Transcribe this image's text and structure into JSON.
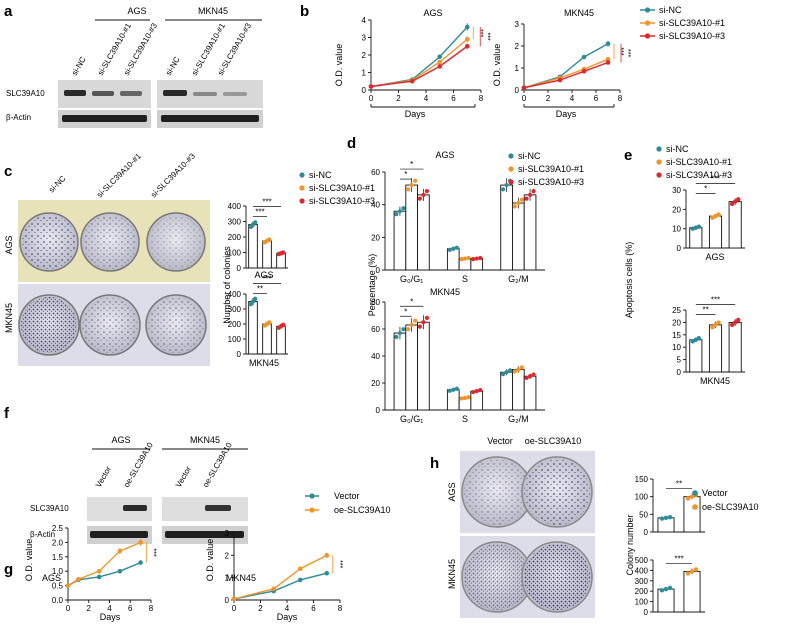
{
  "colors": {
    "c1": "#2b8c9a",
    "c2": "#f39425",
    "c3": "#e3262b",
    "vec": "#2b8c9a",
    "oe": "#f39425"
  },
  "panels": {
    "a": "a",
    "b": "b",
    "c": "c",
    "d": "d",
    "e": "e",
    "f": "f",
    "g": "g",
    "h": "h"
  },
  "text": {
    "AGS": "AGS",
    "MKN45": "MKN45",
    "siNC": "si-NC",
    "si1": "si-SLC39A10-#1",
    "si3": "si-SLC39A10-#3",
    "SLC39A10": "SLC39A10",
    "bactin": "β-Actin",
    "Vector": "Vector",
    "oe": "oe-SLC39A10",
    "Days": "Days",
    "OD": "O.D. value",
    "NumCol": "Number of colonies",
    "ColNum": "Colony number",
    "Perc": "Percentage (%)",
    "Apop": "Apoptosis cells (%)",
    "G0G1": "G₀/G₁",
    "S": "S",
    "G2M": "G₂/M",
    "s1": "*",
    "s2": "**",
    "s3": "***"
  },
  "chart_data": [
    {
      "type": "line",
      "panel": "b-AGS",
      "title": "AGS",
      "xlabel": "Days",
      "ylabel": "O.D. value",
      "xlim": [
        0,
        8
      ],
      "ylim": [
        0,
        4
      ],
      "xticks": [
        0,
        2,
        4,
        6,
        8
      ],
      "yticks": [
        0,
        1,
        2,
        3,
        4
      ],
      "x": [
        0,
        3,
        5,
        7
      ],
      "series": [
        {
          "name": "si-NC",
          "values": [
            0.2,
            0.6,
            1.9,
            3.6
          ]
        },
        {
          "name": "si-SLC39A10-#1",
          "values": [
            0.2,
            0.55,
            1.6,
            2.9
          ]
        },
        {
          "name": "si-SLC39A10-#3",
          "values": [
            0.2,
            0.5,
            1.35,
            2.5
          ]
        }
      ],
      "significance": [
        "***",
        "***"
      ]
    },
    {
      "type": "line",
      "panel": "b-MKN45",
      "title": "MKN45",
      "xlabel": "Days",
      "ylabel": "O.D. value",
      "xlim": [
        0,
        8
      ],
      "ylim": [
        0,
        3
      ],
      "xticks": [
        0,
        2,
        4,
        6,
        8
      ],
      "yticks": [
        0,
        1,
        2,
        3
      ],
      "x": [
        0,
        3,
        5,
        7
      ],
      "series": [
        {
          "name": "si-NC",
          "values": [
            0.1,
            0.6,
            1.5,
            2.1
          ]
        },
        {
          "name": "si-SLC39A10-#1",
          "values": [
            0.1,
            0.55,
            0.95,
            1.4
          ]
        },
        {
          "name": "si-SLC39A10-#3",
          "values": [
            0.1,
            0.45,
            0.85,
            1.25
          ]
        }
      ],
      "significance": [
        "***",
        "***"
      ]
    },
    {
      "type": "bar",
      "panel": "c-AGS",
      "xlabel": "AGS",
      "ylabel": "Number of colonies",
      "ylim": [
        0,
        400
      ],
      "yticks": [
        0,
        100,
        200,
        300,
        400
      ],
      "categories": [
        "si-NC",
        "si-SLC39A10-#1",
        "si-SLC39A10-#3"
      ],
      "values": [
        280,
        175,
        95
      ],
      "significance": [
        "***",
        "***"
      ]
    },
    {
      "type": "bar",
      "panel": "c-MKN45",
      "xlabel": "MKN45",
      "ylabel": "Number of colonies",
      "ylim": [
        0,
        400
      ],
      "yticks": [
        0,
        100,
        200,
        300,
        400
      ],
      "categories": [
        "si-NC",
        "si-SLC39A10-#1",
        "si-SLC39A10-#3"
      ],
      "values": [
        350,
        200,
        185
      ],
      "significance": [
        "**",
        "***"
      ]
    },
    {
      "type": "bar",
      "panel": "d-AGS",
      "title": "AGS",
      "ylabel": "Percentage (%)",
      "ylim": [
        0,
        60
      ],
      "yticks": [
        0,
        20,
        40,
        60
      ],
      "categories": [
        "G₀/G₁",
        "S",
        "G₂/M"
      ],
      "series": [
        {
          "name": "si-NC",
          "values": [
            36,
            13,
            52
          ]
        },
        {
          "name": "si-SLC39A10-#1",
          "values": [
            52,
            7,
            41
          ]
        },
        {
          "name": "si-SLC39A10-#3",
          "values": [
            46,
            7,
            46
          ]
        }
      ],
      "significance": [
        "*",
        "*"
      ]
    },
    {
      "type": "bar",
      "panel": "d-MKN45",
      "title": "MKN45",
      "ylabel": "Percentage (%)",
      "ylim": [
        0,
        80
      ],
      "yticks": [
        0,
        20,
        40,
        60,
        80
      ],
      "categories": [
        "G₀/G₁",
        "S",
        "G₂/M"
      ],
      "series": [
        {
          "name": "si-NC",
          "values": [
            57,
            15,
            28
          ]
        },
        {
          "name": "si-SLC39A10-#1",
          "values": [
            63,
            9,
            30
          ]
        },
        {
          "name": "si-SLC39A10-#3",
          "values": [
            65,
            14,
            25
          ]
        }
      ],
      "significance": [
        "*",
        "*"
      ]
    },
    {
      "type": "bar",
      "panel": "e-AGS",
      "xlabel": "AGS",
      "ylabel": "Apoptosis cells (%)",
      "ylim": [
        0,
        30
      ],
      "yticks": [
        0,
        10,
        20,
        30
      ],
      "categories": [
        "si-NC",
        "si-SLC39A10-#1",
        "si-SLC39A10-#3"
      ],
      "values": [
        10.5,
        16.5,
        24
      ],
      "significance": [
        "*",
        "***"
      ]
    },
    {
      "type": "bar",
      "panel": "e-MKN45",
      "xlabel": "MKN45",
      "ylabel": "Apoptosis cells (%)",
      "ylim": [
        0,
        25
      ],
      "yticks": [
        0,
        5,
        10,
        15,
        20,
        25
      ],
      "categories": [
        "si-NC",
        "si-SLC39A10-#1",
        "si-SLC39A10-#3"
      ],
      "values": [
        13,
        19,
        20
      ],
      "significance": [
        "**",
        "***"
      ]
    },
    {
      "type": "line",
      "panel": "g-AGS",
      "title": "AGS",
      "xlabel": "Days",
      "ylabel": "O.D. value",
      "xlim": [
        0,
        8
      ],
      "ylim": [
        0,
        2.5
      ],
      "xticks": [
        0,
        2,
        4,
        6,
        8
      ],
      "yticks": [
        0,
        0.5,
        1.0,
        1.5,
        2.0,
        2.5
      ],
      "x": [
        0,
        1,
        3,
        5,
        7
      ],
      "series": [
        {
          "name": "Vector",
          "values": [
            0.5,
            0.7,
            0.8,
            1.0,
            1.3
          ]
        },
        {
          "name": "oe-SLC39A10",
          "values": [
            0.5,
            0.72,
            1.0,
            1.7,
            2.0
          ]
        }
      ],
      "significance": [
        "***"
      ]
    },
    {
      "type": "line",
      "panel": "g-MKN45",
      "title": "MKN45",
      "xlabel": "Days",
      "ylabel": "O.D. value",
      "xlim": [
        0,
        8
      ],
      "ylim": [
        0,
        3
      ],
      "xticks": [
        0,
        2,
        4,
        6,
        8
      ],
      "yticks": [
        0,
        1,
        2,
        3
      ],
      "x": [
        0,
        3,
        5,
        7
      ],
      "series": [
        {
          "name": "Vector",
          "values": [
            0.05,
            0.4,
            0.9,
            1.2
          ]
        },
        {
          "name": "oe-SLC39A10",
          "values": [
            0.05,
            0.5,
            1.4,
            2.0
          ]
        }
      ],
      "significance": [
        "***"
      ]
    },
    {
      "type": "bar",
      "panel": "h-AGS",
      "ylabel": "Colony number",
      "ylim": [
        0,
        150
      ],
      "yticks": [
        0,
        50,
        100,
        150
      ],
      "categories": [
        "Vector",
        "oe-SLC39A10"
      ],
      "values": [
        40,
        100
      ],
      "significance": [
        "**"
      ]
    },
    {
      "type": "bar",
      "panel": "h-MKN45",
      "ylabel": "Colony number",
      "ylim": [
        0,
        500
      ],
      "yticks": [
        0,
        100,
        200,
        300,
        400,
        500
      ],
      "categories": [
        "Vector",
        "oe-SLC39A10"
      ],
      "values": [
        220,
        390
      ],
      "significance": [
        "***"
      ]
    }
  ]
}
